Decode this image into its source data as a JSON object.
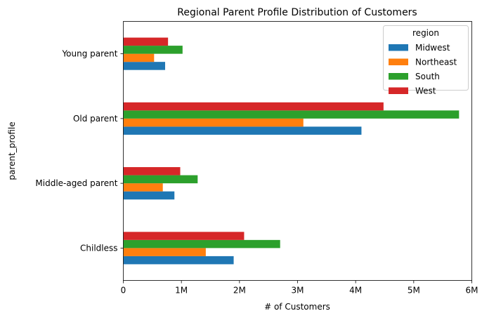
{
  "chart_data": {
    "type": "bar",
    "orientation": "horizontal",
    "title": "Regional Parent Profile Distribution of Customers",
    "xlabel": "# of Customers",
    "ylabel": "parent_profile",
    "categories": [
      "Childless",
      "Middle-aged parent",
      "Old parent",
      "Young parent"
    ],
    "xlim": [
      0,
      6000000
    ],
    "xticks": [
      0,
      1000000,
      2000000,
      3000000,
      4000000,
      5000000,
      6000000
    ],
    "xtick_labels": [
      "0",
      "1M",
      "2M",
      "3M",
      "4M",
      "5M",
      "6M"
    ],
    "grid": false,
    "legend": {
      "title": "region",
      "placement": "top-right"
    },
    "series": [
      {
        "name": "Midwest",
        "color": "#1f77b4",
        "values": [
          1900000,
          880000,
          4100000,
          720000
        ]
      },
      {
        "name": "Northeast",
        "color": "#ff7f0e",
        "values": [
          1420000,
          680000,
          3100000,
          530000
        ]
      },
      {
        "name": "South",
        "color": "#2ca02c",
        "values": [
          2700000,
          1280000,
          5780000,
          1020000
        ]
      },
      {
        "name": "West",
        "color": "#d62728",
        "values": [
          2080000,
          980000,
          4480000,
          770000
        ]
      }
    ]
  }
}
